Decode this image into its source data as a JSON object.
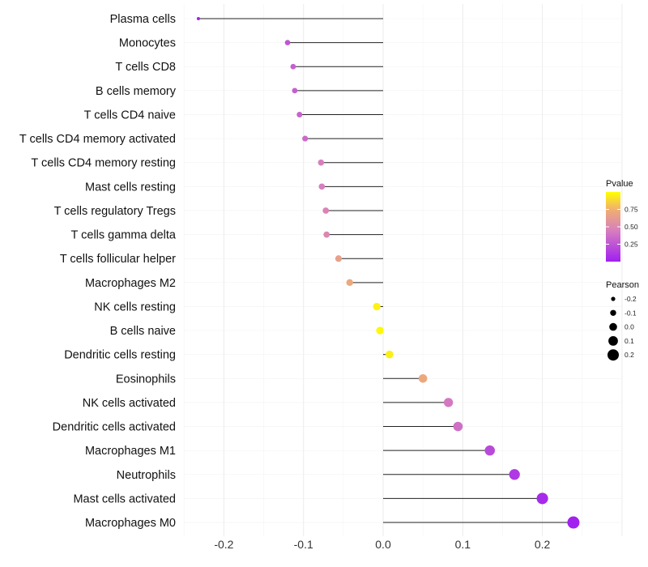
{
  "chart_data": {
    "type": "lollipop",
    "title": "",
    "xlabel": "",
    "ylabel": "",
    "xlim": [
      -0.25,
      0.3
    ],
    "xticks": [
      -0.2,
      -0.1,
      0.0,
      0.1,
      0.2
    ],
    "xtick_labels": [
      "-0.2",
      "-0.1",
      "0.0",
      "0.1",
      "0.2"
    ],
    "grid": true,
    "categories": [
      "Plasma cells",
      "Monocytes",
      "T cells CD8",
      "B cells memory",
      "T cells CD4 naive",
      "T cells CD4 memory activated",
      "T cells CD4 memory resting",
      "Mast cells resting",
      "T cells regulatory  Tregs ",
      "T cells gamma delta",
      "T cells follicular helper",
      "Macrophages M2",
      "NK cells resting",
      "B cells naive",
      "Dendritic cells resting",
      "Eosinophils",
      "NK cells activated",
      "Dendritic cells activated",
      "Macrophages M1",
      "Neutrophils",
      "Mast cells activated",
      "Macrophages M0"
    ],
    "pearson": [
      -0.232,
      -0.12,
      -0.113,
      -0.111,
      -0.105,
      -0.098,
      -0.078,
      -0.077,
      -0.072,
      -0.071,
      -0.056,
      -0.042,
      -0.008,
      -0.004,
      0.008,
      0.05,
      0.082,
      0.094,
      0.134,
      0.165,
      0.2,
      0.239
    ],
    "pvalue": [
      0.01,
      0.25,
      0.3,
      0.3,
      0.32,
      0.35,
      0.45,
      0.45,
      0.48,
      0.5,
      0.65,
      0.7,
      0.96,
      0.98,
      0.95,
      0.7,
      0.42,
      0.38,
      0.2,
      0.12,
      0.05,
      0.01
    ],
    "legend_color": {
      "title": "Pvalue",
      "ticks": [
        0.25,
        0.5,
        0.75
      ],
      "tick_labels": [
        "0.25",
        "0.50",
        "0.75"
      ],
      "colors": [
        "#A020F0",
        "#D77FBE",
        "#F0B070",
        "#FFFF00"
      ]
    },
    "legend_size": {
      "title": "Pearson",
      "values": [
        -0.2,
        -0.1,
        0.0,
        0.1,
        0.2
      ],
      "labels": [
        "-0.2",
        "-0.1",
        "0.0",
        "0.1",
        "0.2"
      ]
    },
    "legend_position": "right"
  }
}
